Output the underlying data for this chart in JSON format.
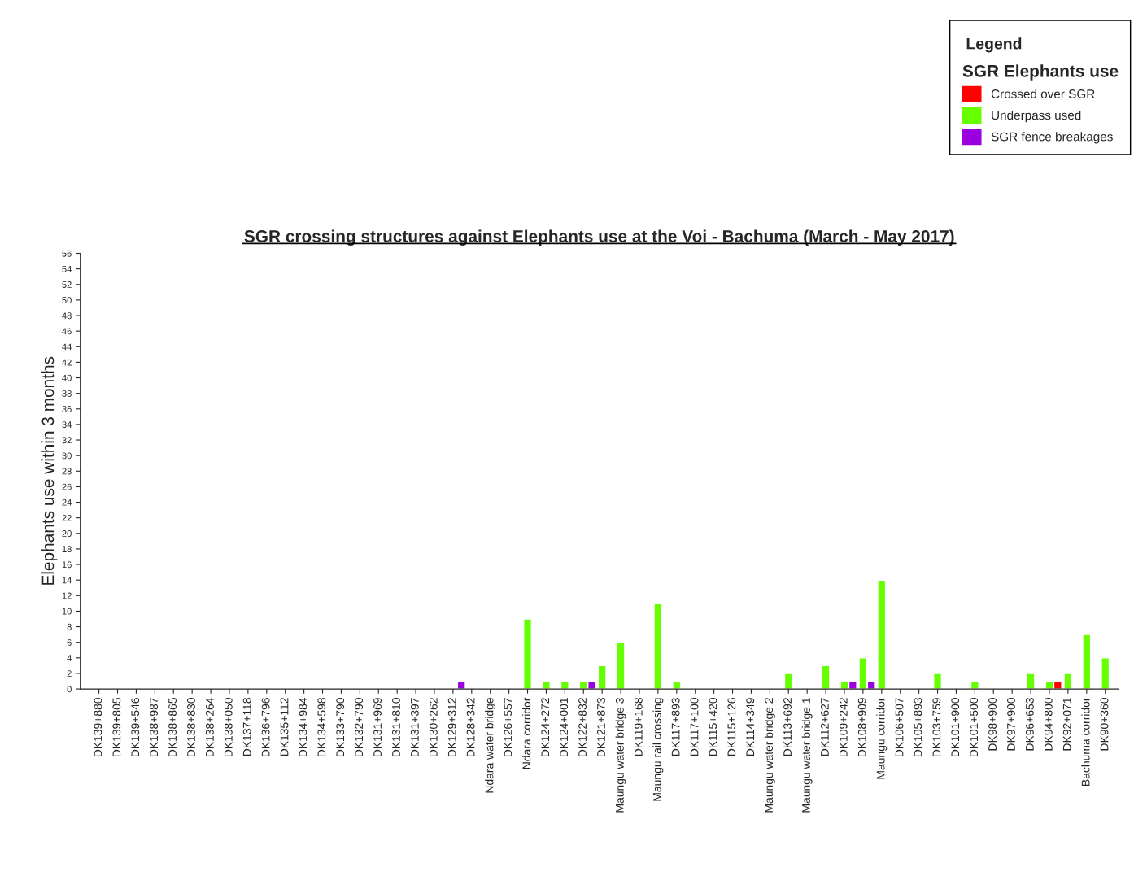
{
  "chart_data": {
    "type": "bar",
    "title": "SGR crossing structures against Elephants use at the Voi - Bachuma (March - May 2017)",
    "ylabel": "Elephants use within 3 months",
    "legend_title": "SGR Elephants use",
    "annotations": [
      "Legend"
    ],
    "categories": [
      "DK139+880",
      "DK139+805",
      "DK139+546",
      "DK138+987",
      "DK138+865",
      "DK138+830",
      "DK138+264",
      "DK138+050",
      "DK137+118",
      "DK136+796",
      "DK135+112",
      "DK134+984",
      "DK134+598",
      "DK133+790",
      "DK132+790",
      "DK131+969",
      "DK131+810",
      "DK131+397",
      "DK130+262",
      "DK129+312",
      "DK128+342",
      "Ndara water bridge",
      "DK126+557",
      "Ndara corridor",
      "DK124+272",
      "DK124+001",
      "DK122+832",
      "DK121+873",
      "Maungu water bridge 3",
      "DK119+168",
      "Maungu rail crossing",
      "DK117+893",
      "DK117+100",
      "DK115+420",
      "DK115+126",
      "DK114+349",
      "Maungu water bridge 2",
      "DK113+692",
      "Maungu water bridge 1",
      "DK112+627",
      "DK109+242",
      "DK108+909",
      "Maungu corridor",
      "DK106+507",
      "DK105+893",
      "DK103+759",
      "DK101+900",
      "DK101+500",
      "DK98+900",
      "DK97+900",
      "DK96+653",
      "DK94+800",
      "DK92+071",
      "Bachuma corridor",
      "DK90+360"
    ],
    "series": [
      {
        "name": "Crossed over SGR",
        "color": "#ff0000",
        "values": [
          null,
          null,
          null,
          null,
          null,
          null,
          null,
          null,
          null,
          null,
          null,
          null,
          null,
          null,
          null,
          null,
          null,
          null,
          null,
          null,
          null,
          null,
          null,
          null,
          null,
          null,
          null,
          null,
          null,
          null,
          null,
          null,
          null,
          null,
          null,
          null,
          null,
          null,
          null,
          null,
          null,
          null,
          null,
          null,
          null,
          null,
          null,
          null,
          null,
          null,
          null,
          1,
          null,
          null,
          null
        ]
      },
      {
        "name": "Underpass used",
        "color": "#66ff00",
        "values": [
          null,
          null,
          null,
          null,
          null,
          null,
          null,
          null,
          null,
          null,
          null,
          null,
          null,
          null,
          null,
          null,
          null,
          null,
          null,
          null,
          null,
          null,
          null,
          9,
          1,
          1,
          1,
          3,
          6,
          null,
          11,
          1,
          null,
          null,
          null,
          null,
          null,
          2,
          null,
          3,
          1,
          4,
          14,
          null,
          null,
          2,
          null,
          1,
          null,
          null,
          2,
          1,
          2,
          7,
          4
        ]
      },
      {
        "name": "SGR fence breakages",
        "color": "#9900dd",
        "values": [
          null,
          null,
          null,
          null,
          null,
          null,
          null,
          null,
          null,
          null,
          null,
          null,
          null,
          null,
          null,
          null,
          null,
          null,
          null,
          1,
          null,
          null,
          null,
          null,
          null,
          null,
          1,
          null,
          null,
          null,
          null,
          null,
          null,
          null,
          null,
          null,
          null,
          null,
          null,
          null,
          1,
          1,
          null,
          null,
          null,
          null,
          null,
          null,
          null,
          null,
          null,
          null,
          null,
          null,
          null
        ]
      }
    ],
    "ylim": [
      0,
      56
    ],
    "yticks": [
      0,
      2,
      4,
      6,
      8,
      10,
      12,
      14,
      16,
      18,
      20,
      22,
      24,
      26,
      28,
      30,
      32,
      34,
      36,
      38,
      40,
      42,
      44,
      46,
      48,
      50,
      52,
      54,
      56
    ],
    "grid": false,
    "legend": "top right"
  }
}
